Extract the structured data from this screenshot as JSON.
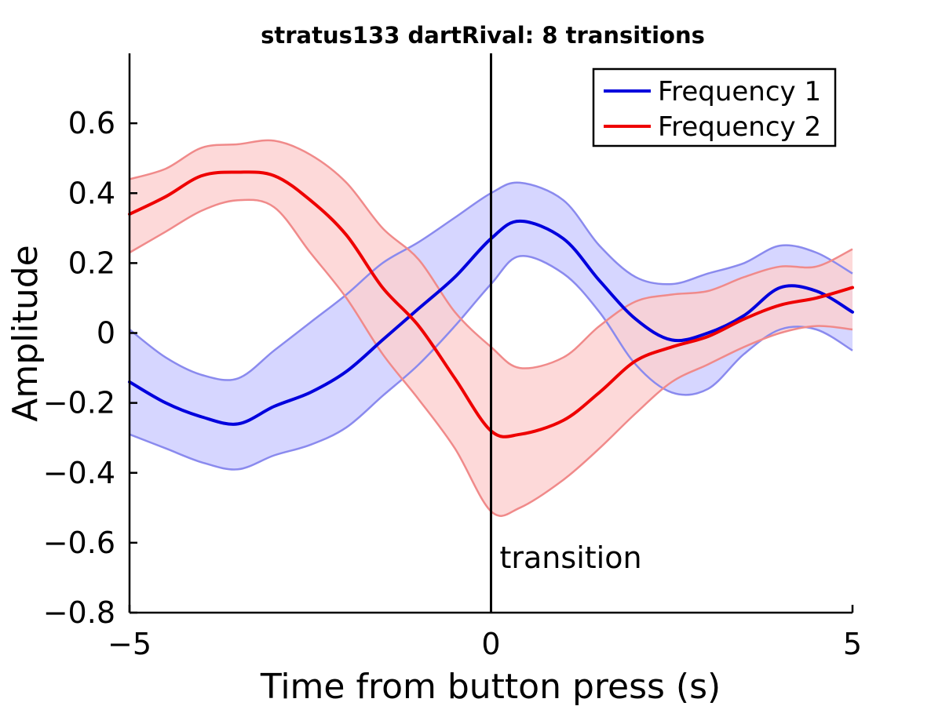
{
  "chart_data": {
    "type": "line",
    "title": "stratus133 dartRival: 8 transitions",
    "xlabel": "Time from button press (s)",
    "ylabel": "Amplitude",
    "xlim": [
      -5,
      5
    ],
    "ylim": [
      -0.8,
      0.8
    ],
    "xticks": [
      -5,
      0,
      5
    ],
    "xtick_labels": [
      "−5",
      "0",
      "5"
    ],
    "yticks": [
      -0.8,
      -0.6,
      -0.4,
      -0.2,
      0,
      0.2,
      0.4,
      0.6
    ],
    "ytick_labels": [
      "−0.8",
      "−0.6",
      "−0.4",
      "−0.2",
      "0",
      "0.2",
      "0.4",
      "0.6"
    ],
    "grid": false,
    "legend_position": "top-right",
    "annotation": {
      "label": "transition",
      "x": 0
    },
    "x": [
      -5,
      -4.5,
      -4,
      -3.5,
      -3,
      -2.5,
      -2,
      -1.5,
      -1,
      -0.5,
      0,
      0.4,
      1,
      1.5,
      2,
      2.5,
      3,
      3.5,
      4,
      4.5,
      5
    ],
    "series": [
      {
        "name": "Frequency 1",
        "color": "#0000dd",
        "band_color": "#ccccff",
        "band_edge_color": "#8a8aee",
        "values": [
          -0.14,
          -0.2,
          -0.24,
          -0.26,
          -0.21,
          -0.17,
          -0.11,
          -0.02,
          0.07,
          0.16,
          0.27,
          0.32,
          0.27,
          0.15,
          0.04,
          -0.02,
          0.0,
          0.05,
          0.13,
          0.12,
          0.06
        ],
        "upper": [
          0.01,
          -0.07,
          -0.12,
          -0.13,
          -0.05,
          0.03,
          0.11,
          0.2,
          0.26,
          0.33,
          0.4,
          0.43,
          0.38,
          0.25,
          0.16,
          0.14,
          0.17,
          0.2,
          0.25,
          0.23,
          0.17
        ],
        "lower": [
          -0.29,
          -0.33,
          -0.37,
          -0.39,
          -0.35,
          -0.32,
          -0.27,
          -0.18,
          -0.09,
          0.02,
          0.14,
          0.22,
          0.17,
          0.06,
          -0.09,
          -0.17,
          -0.16,
          -0.06,
          0.01,
          0.01,
          -0.05
        ]
      },
      {
        "name": "Frequency 2",
        "color": "#ee0000",
        "band_color": "#fdd0d0",
        "band_edge_color": "#f08a8a",
        "values": [
          0.34,
          0.39,
          0.45,
          0.46,
          0.45,
          0.38,
          0.28,
          0.13,
          0.02,
          -0.13,
          -0.28,
          -0.29,
          -0.25,
          -0.17,
          -0.08,
          -0.04,
          -0.01,
          0.04,
          0.08,
          0.1,
          0.13
        ],
        "upper": [
          0.44,
          0.47,
          0.53,
          0.54,
          0.55,
          0.51,
          0.43,
          0.3,
          0.21,
          0.06,
          -0.04,
          -0.1,
          -0.07,
          0.02,
          0.09,
          0.11,
          0.12,
          0.16,
          0.19,
          0.19,
          0.24
        ],
        "lower": [
          0.23,
          0.29,
          0.35,
          0.38,
          0.36,
          0.23,
          0.1,
          -0.06,
          -0.19,
          -0.33,
          -0.51,
          -0.5,
          -0.42,
          -0.33,
          -0.23,
          -0.14,
          -0.09,
          -0.04,
          0.0,
          0.02,
          0.01
        ]
      }
    ]
  }
}
